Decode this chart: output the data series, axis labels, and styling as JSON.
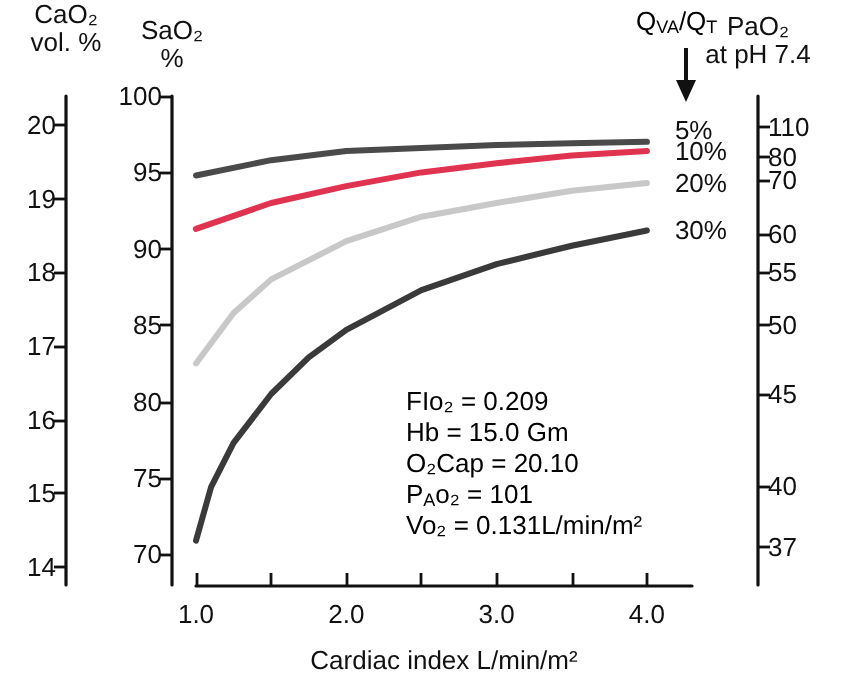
{
  "chart_data": {
    "type": "line",
    "xlabel": "Cardiac index L/min/m²",
    "ylabel": "SaO₂\n%",
    "y3label": "CaO₂\nvol. %",
    "y2label": "PaO₂\nat pH 7.4",
    "legend_title": "Q$_{VA}$/Q$_{T}$",
    "xlim": [
      1.0,
      4.3
    ],
    "xticks": [
      {
        "value": 1.0,
        "label": "1.0"
      },
      {
        "value": 1.5,
        "label": null
      },
      {
        "value": 2.0,
        "label": "2.0"
      },
      {
        "value": 2.5,
        "label": null
      },
      {
        "value": 3.0,
        "label": "3.0"
      },
      {
        "value": 3.5,
        "label": null
      },
      {
        "value": 4.0,
        "label": "4.0"
      }
    ],
    "ylim": [
      68,
      100
    ],
    "yticks": [
      70,
      75,
      80,
      85,
      90,
      95,
      100
    ],
    "y3lim": [
      13.75,
      20.4
    ],
    "y3ticks": [
      14,
      15,
      16,
      17,
      18,
      19,
      20
    ],
    "y2_categories": [
      null,
      null,
      null,
      null,
      "110",
      null,
      null,
      null,
      "80",
      null,
      null,
      "70",
      null,
      null,
      null,
      null,
      null,
      null,
      "60",
      null,
      null,
      null,
      null,
      "55",
      null,
      null,
      null,
      null,
      null,
      null,
      "50",
      null,
      null,
      null,
      null,
      null,
      null,
      null,
      null,
      "45",
      null,
      null,
      null,
      null,
      null,
      null,
      null,
      null,
      null,
      null,
      null,
      "40",
      null,
      null,
      null,
      null,
      null,
      null,
      null,
      "37",
      null,
      null,
      null,
      null,
      null
    ],
    "grid": false,
    "legend": false,
    "marker": "none",
    "line_style": "solid",
    "series": [
      {
        "name": "5%",
        "color": "#4a4a4a",
        "x": [
          1.0,
          1.5,
          2.0,
          2.5,
          3.0,
          3.5,
          4.0
        ],
        "values": [
          94.8,
          95.8,
          96.4,
          96.6,
          96.8,
          96.9,
          97.0
        ]
      },
      {
        "name": "10%",
        "color": "#e0334f",
        "x": [
          1.0,
          1.5,
          2.0,
          2.5,
          3.0,
          3.5,
          4.0
        ],
        "values": [
          91.3,
          93.0,
          94.1,
          95.0,
          95.6,
          96.1,
          96.4
        ]
      },
      {
        "name": "20%",
        "color": "#c8c8c8",
        "x": [
          1.0,
          1.25,
          1.5,
          2.0,
          2.5,
          3.0,
          3.5,
          4.0
        ],
        "values": [
          82.5,
          85.8,
          88.0,
          90.5,
          92.1,
          93.0,
          93.8,
          94.3
        ]
      },
      {
        "name": "30%",
        "color": "#3a3a3a",
        "x": [
          1.0,
          1.1,
          1.25,
          1.5,
          1.75,
          2.0,
          2.5,
          3.0,
          3.5,
          4.0
        ],
        "values": [
          70.9,
          74.4,
          77.3,
          80.5,
          82.9,
          84.7,
          87.3,
          89.0,
          90.2,
          91.2
        ]
      }
    ],
    "annotations": [
      "FIo₂ = 0.209",
      "Hb = 15.0 Gm",
      "O₂Cap = 20.10",
      "P$_{A}$o₂ = 101",
      "Vo₂ = 0.131L/min/m²"
    ]
  }
}
